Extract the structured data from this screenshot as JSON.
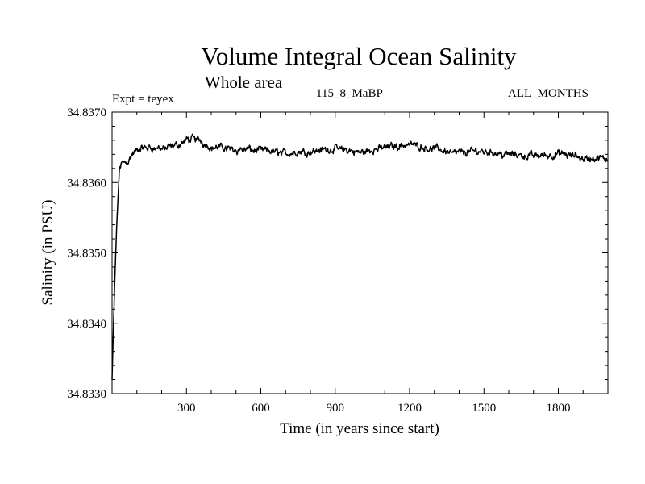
{
  "header": {
    "title": "Volume Integral Ocean Salinity",
    "subtitle": "Whole area",
    "expt_label": "Expt = teyex",
    "period_label": "115_8_MaBP",
    "months_label": "ALL_MONTHS"
  },
  "chart_data": {
    "type": "line",
    "title": "Volume Integral Ocean Salinity",
    "subtitle": "Whole area",
    "xlabel": "Time (in years since start)",
    "ylabel": "Salinity (in PSU)",
    "xlim": [
      0,
      2000
    ],
    "ylim": [
      34.833,
      34.837
    ],
    "x_ticks": [
      300,
      600,
      900,
      1200,
      1500,
      1800
    ],
    "x_tick_labels": [
      "300",
      "600",
      "900",
      "1200",
      "1500",
      "1800"
    ],
    "y_ticks": [
      34.833,
      34.834,
      34.835,
      34.836,
      34.837
    ],
    "y_tick_labels": [
      "34.8330",
      "34.8340",
      "34.8350",
      "34.8360",
      "34.8370"
    ],
    "grid": false,
    "series": [
      {
        "name": "Salinity",
        "x": [
          0,
          10,
          20,
          30,
          40,
          60,
          80,
          100,
          150,
          200,
          250,
          300,
          350,
          400,
          500,
          600,
          700,
          800,
          900,
          1000,
          1100,
          1200,
          1300,
          1400,
          1500,
          1600,
          1700,
          1800,
          1900,
          2000
        ],
        "values": [
          34.8332,
          34.8345,
          34.8355,
          34.8362,
          34.83628,
          34.8363,
          34.8364,
          34.83645,
          34.8365,
          34.83648,
          34.8365,
          34.8366,
          34.83662,
          34.8365,
          34.83648,
          34.83645,
          34.83642,
          34.83645,
          34.83648,
          34.83642,
          34.8365,
          34.83655,
          34.83648,
          34.83642,
          34.83645,
          34.8364,
          34.83638,
          34.8364,
          34.83635,
          34.83632
        ],
        "noise_amplitude": 8e-05
      }
    ]
  }
}
